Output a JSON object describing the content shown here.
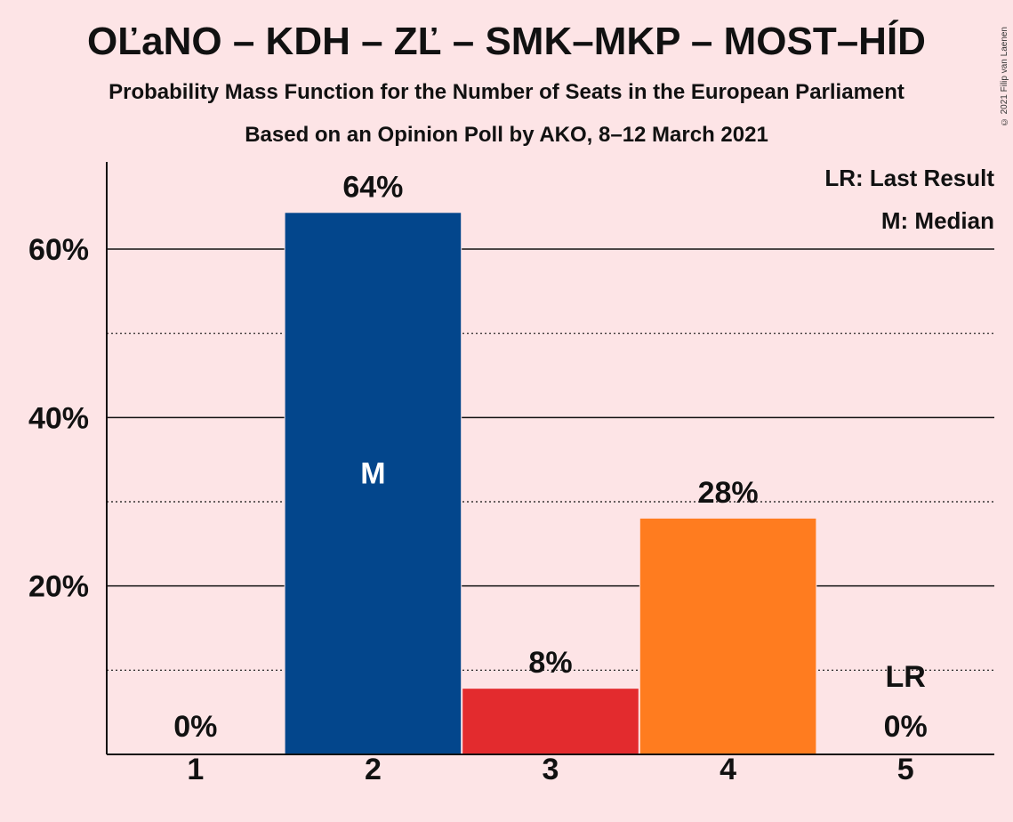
{
  "header": {
    "title": "OĽaNO – KDH – ZĽ – SMK–MKP – MOST–HÍD",
    "subtitle": "Probability Mass Function for the Number of Seats in the European Parliament",
    "source": "Based on an Opinion Poll by AKO, 8–12 March 2021",
    "copyright": "© 2021 Filip van Laenen"
  },
  "legend": {
    "last_result": "LR: Last Result",
    "median": "M: Median"
  },
  "chart_data": {
    "type": "bar",
    "categories": [
      "1",
      "2",
      "3",
      "4",
      "5"
    ],
    "values": [
      0,
      64.3,
      7.8,
      28.0,
      0
    ],
    "labels": [
      "0%",
      "64%",
      "8%",
      "28%",
      "0%"
    ],
    "colors": [
      "#1F77B4",
      "#03468C",
      "#E32B2E",
      "#FF7C1F",
      "#1F77B4"
    ],
    "ylim": [
      0,
      70
    ],
    "yticks": [
      20,
      40,
      60
    ],
    "ytick_labels": [
      "20%",
      "40%",
      "60%"
    ],
    "minor_gridlines": [
      10,
      30,
      50
    ],
    "median_index": 1,
    "median_marker": "M",
    "last_result_index": 4,
    "last_result_marker": "LR",
    "legend_position": "top-right"
  }
}
